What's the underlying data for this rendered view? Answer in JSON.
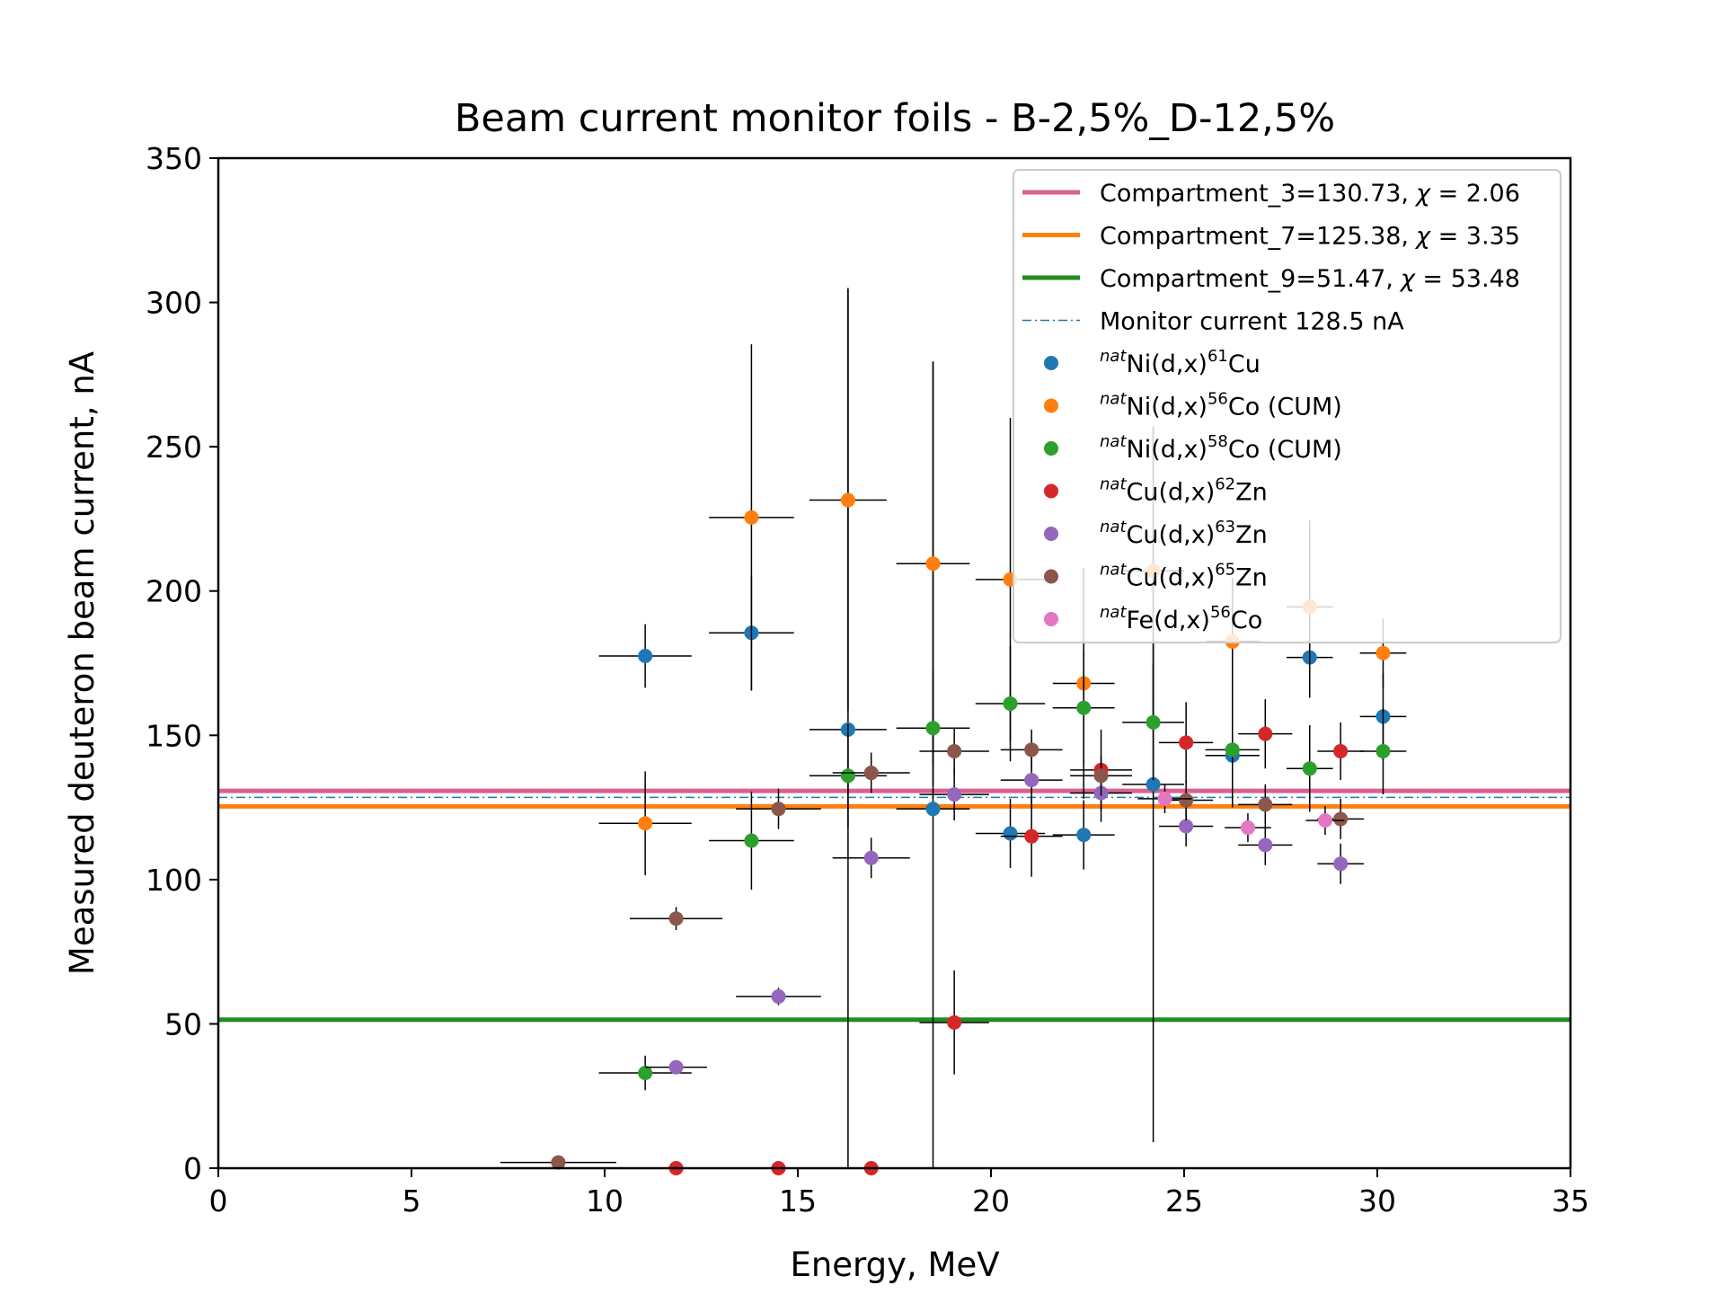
{
  "chart_data": {
    "type": "scatter",
    "title": "Beam current monitor foils - B-2,5%_D-12,5%",
    "xlabel": "Energy, MeV",
    "ylabel": "Measured deuteron beam current, nA",
    "xlim": [
      0,
      35
    ],
    "ylim": [
      0,
      350
    ],
    "xticks": [
      0,
      5,
      10,
      15,
      20,
      25,
      30,
      35
    ],
    "yticks": [
      0,
      50,
      100,
      150,
      200,
      250,
      300,
      350
    ],
    "grid": false,
    "legend_position": "top-right",
    "reference_lines": [
      {
        "label": "Compartment_3=130.73, χ = 2.06",
        "name": "Compartment_3=130.73,",
        "chi_prefix": "χ = ",
        "chi": "2.06",
        "y": 130.73,
        "color": "#d9628f",
        "style": "solid"
      },
      {
        "label": "Compartment_7=125.38, χ = 3.35",
        "name": "Compartment_7=125.38,",
        "chi_prefix": "χ = ",
        "chi": "3.35",
        "y": 125.38,
        "color": "#ff7f0e",
        "style": "solid"
      },
      {
        "label": "Compartment_9=51.47, χ = 53.48",
        "name": "Compartment_9=51.47,",
        "chi_prefix": "χ = ",
        "chi": "53.48",
        "y": 51.47,
        "color": "#228b22",
        "style": "solid"
      },
      {
        "label": "Monitor current 128.5 nA",
        "name": "Monitor current 128.5 nA",
        "chi_prefix": "",
        "chi": "",
        "y": 128.5,
        "color": "#1f77b4",
        "style": "dashdot"
      }
    ],
    "series": [
      {
        "name": "natNi(d,x)61Cu",
        "sup_pre": "nat",
        "target": "Ni(d,x)",
        "sup_mass": "61",
        "product": "Cu",
        "suffix": "",
        "color": "#1f77b4",
        "points": [
          {
            "x": 11.05,
            "y": 177.5,
            "xerr": 1.2,
            "yerr": 11
          },
          {
            "x": 13.8,
            "y": 185.5,
            "xerr": 1.1,
            "yerr": 20
          },
          {
            "x": 16.3,
            "y": 152,
            "xerr": 1.0,
            "yerr": 153
          },
          {
            "x": 18.5,
            "y": 124.5,
            "xerr": 0.95,
            "yerr": 155
          },
          {
            "x": 20.5,
            "y": 116,
            "xerr": 0.9,
            "yerr": 12
          },
          {
            "x": 22.4,
            "y": 115.5,
            "xerr": 0.8,
            "yerr": 12
          },
          {
            "x": 24.2,
            "y": 133,
            "xerr": 0.8,
            "yerr": 124
          },
          {
            "x": 26.25,
            "y": 143,
            "xerr": 0.7,
            "yerr": 18
          },
          {
            "x": 28.25,
            "y": 177,
            "xerr": 0.6,
            "yerr": 14
          },
          {
            "x": 30.15,
            "y": 156.5,
            "xerr": 0.6,
            "yerr": 15
          }
        ]
      },
      {
        "name": "natNi(d,x)56Co (CUM)",
        "sup_pre": "nat",
        "target": "Ni(d,x)",
        "sup_mass": "56",
        "product": "Co",
        "suffix": " (CUM)",
        "color": "#ff7f0e",
        "points": [
          {
            "x": 11.05,
            "y": 119.5,
            "xerr": 1.2,
            "yerr": 18
          },
          {
            "x": 13.8,
            "y": 225.5,
            "xerr": 1.1,
            "yerr": 60
          },
          {
            "x": 16.3,
            "y": 231.5,
            "xerr": 1.0,
            "yerr": 73
          },
          {
            "x": 18.5,
            "y": 209.5,
            "xerr": 0.95,
            "yerr": 70
          },
          {
            "x": 20.5,
            "y": 204,
            "xerr": 0.9,
            "yerr": 56
          },
          {
            "x": 22.4,
            "y": 168,
            "xerr": 0.8,
            "yerr": 40
          },
          {
            "x": 24.2,
            "y": 207,
            "xerr": 0.8,
            "yerr": 50
          },
          {
            "x": 26.25,
            "y": 182.5,
            "xerr": 0.7,
            "yerr": 22
          },
          {
            "x": 28.25,
            "y": 194.5,
            "xerr": 0.6,
            "yerr": 30
          },
          {
            "x": 30.15,
            "y": 178.5,
            "xerr": 0.6,
            "yerr": 12
          }
        ]
      },
      {
        "name": "natNi(d,x)58Co (CUM)",
        "sup_pre": "nat",
        "target": "Ni(d,x)",
        "sup_mass": "58",
        "product": "Co",
        "suffix": " (CUM)",
        "color": "#2ca02c",
        "points": [
          {
            "x": 11.05,
            "y": 33,
            "xerr": 1.2,
            "yerr": 6
          },
          {
            "x": 13.8,
            "y": 113.5,
            "xerr": 1.1,
            "yerr": 17
          },
          {
            "x": 16.3,
            "y": 136,
            "xerr": 1.0,
            "yerr": 18
          },
          {
            "x": 18.5,
            "y": 152.5,
            "xerr": 0.95,
            "yerr": 20
          },
          {
            "x": 20.5,
            "y": 161,
            "xerr": 0.9,
            "yerr": 20
          },
          {
            "x": 22.4,
            "y": 159.5,
            "xerr": 0.8,
            "yerr": 20
          },
          {
            "x": 24.2,
            "y": 154.5,
            "xerr": 0.8,
            "yerr": 20
          },
          {
            "x": 26.25,
            "y": 145,
            "xerr": 0.7,
            "yerr": 15
          },
          {
            "x": 28.25,
            "y": 138.5,
            "xerr": 0.6,
            "yerr": 15
          },
          {
            "x": 30.15,
            "y": 144.5,
            "xerr": 0.6,
            "yerr": 15
          }
        ]
      },
      {
        "name": "natCu(d,x)62Zn",
        "sup_pre": "nat",
        "target": "Cu(d,x)",
        "sup_mass": "62",
        "product": "Zn",
        "suffix": "",
        "color": "#d62728",
        "points": [
          {
            "x": 11.85,
            "y": 0,
            "xerr": 0,
            "yerr": 0
          },
          {
            "x": 14.5,
            "y": 0,
            "xerr": 0,
            "yerr": 0
          },
          {
            "x": 16.9,
            "y": 0,
            "xerr": 0,
            "yerr": 0
          },
          {
            "x": 19.05,
            "y": 50.5,
            "xerr": 0.9,
            "yerr": 18
          },
          {
            "x": 21.05,
            "y": 115,
            "xerr": 0.8,
            "yerr": 14
          },
          {
            "x": 22.85,
            "y": 138,
            "xerr": 0.8,
            "yerr": 14
          },
          {
            "x": 25.05,
            "y": 147.5,
            "xerr": 0.7,
            "yerr": 14
          },
          {
            "x": 27.1,
            "y": 150.5,
            "xerr": 0.7,
            "yerr": 12
          },
          {
            "x": 29.05,
            "y": 144.5,
            "xerr": 0.6,
            "yerr": 10
          }
        ]
      },
      {
        "name": "natCu(d,x)63Zn",
        "sup_pre": "nat",
        "target": "Cu(d,x)",
        "sup_mass": "63",
        "product": "Zn",
        "suffix": "",
        "color": "#9467bd",
        "points": [
          {
            "x": 11.85,
            "y": 35,
            "xerr": 0.8,
            "yerr": 0
          },
          {
            "x": 14.5,
            "y": 59.5,
            "xerr": 1.1,
            "yerr": 3
          },
          {
            "x": 16.9,
            "y": 107.5,
            "xerr": 1.0,
            "yerr": 7
          },
          {
            "x": 19.05,
            "y": 129.5,
            "xerr": 0.9,
            "yerr": 9
          },
          {
            "x": 21.05,
            "y": 134.5,
            "xerr": 0.8,
            "yerr": 10
          },
          {
            "x": 22.85,
            "y": 130,
            "xerr": 0.8,
            "yerr": 10
          },
          {
            "x": 25.05,
            "y": 118.5,
            "xerr": 0.7,
            "yerr": 7
          },
          {
            "x": 27.1,
            "y": 112,
            "xerr": 0.7,
            "yerr": 7
          },
          {
            "x": 29.05,
            "y": 105.5,
            "xerr": 0.6,
            "yerr": 7
          }
        ]
      },
      {
        "name": "natCu(d,x)65Zn",
        "sup_pre": "nat",
        "target": "Cu(d,x)",
        "sup_mass": "65",
        "product": "Zn",
        "suffix": "",
        "color": "#8c564b",
        "points": [
          {
            "x": 8.8,
            "y": 2,
            "xerr": 1.5,
            "yerr": 0
          },
          {
            "x": 11.85,
            "y": 86.5,
            "xerr": 1.2,
            "yerr": 4
          },
          {
            "x": 14.5,
            "y": 124.5,
            "xerr": 1.1,
            "yerr": 7
          },
          {
            "x": 16.9,
            "y": 137,
            "xerr": 1.0,
            "yerr": 7
          },
          {
            "x": 19.05,
            "y": 144.5,
            "xerr": 0.9,
            "yerr": 8
          },
          {
            "x": 21.05,
            "y": 145,
            "xerr": 0.8,
            "yerr": 7
          },
          {
            "x": 22.85,
            "y": 136,
            "xerr": 0.8,
            "yerr": 7
          },
          {
            "x": 25.05,
            "y": 127.5,
            "xerr": 0.7,
            "yerr": 7
          },
          {
            "x": 27.1,
            "y": 126,
            "xerr": 0.7,
            "yerr": 7
          },
          {
            "x": 29.05,
            "y": 121,
            "xerr": 0.6,
            "yerr": 7
          }
        ]
      },
      {
        "name": "natFe(d,x)56Co",
        "sup_pre": "nat",
        "target": "Fe(d,x)",
        "sup_mass": "56",
        "product": "Co",
        "suffix": "",
        "color": "#e377c2",
        "points": [
          {
            "x": 24.5,
            "y": 128,
            "xerr": 0.7,
            "yerr": 5
          },
          {
            "x": 26.65,
            "y": 118,
            "xerr": 0.6,
            "yerr": 5
          },
          {
            "x": 28.65,
            "y": 120.5,
            "xerr": 0.5,
            "yerr": 5
          }
        ]
      }
    ]
  }
}
